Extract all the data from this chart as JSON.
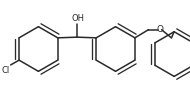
{
  "bg_color": "#ffffff",
  "line_color": "#2a2a2a",
  "line_width": 1.1,
  "font_size_label": 6.0,
  "oh_label": "OH",
  "cl_label": "Cl",
  "o_label": "O",
  "figure_width": 1.9,
  "figure_height": 0.98,
  "dpi": 100
}
